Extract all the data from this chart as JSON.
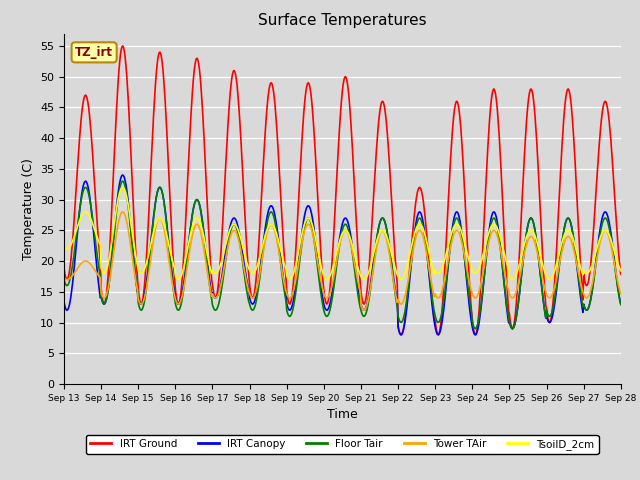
{
  "title": "Surface Temperatures",
  "xlabel": "Time",
  "ylabel": "Temperature (C)",
  "ylim": [
    0,
    57
  ],
  "yticks": [
    0,
    5,
    10,
    15,
    20,
    25,
    30,
    35,
    40,
    45,
    50,
    55
  ],
  "background_color": "#d9d9d9",
  "plot_bg_color": "#d9d9d9",
  "legend_entries": [
    "IRT Ground",
    "IRT Canopy",
    "Floor Tair",
    "Tower TAir",
    "TsoilD_2cm"
  ],
  "legend_colors": [
    "red",
    "blue",
    "green",
    "orange",
    "yellow"
  ],
  "tz_label": "TZ_irt",
  "n_days": 15,
  "start_day": 13,
  "pts_per_day": 48,
  "series": {
    "IRT_Ground": {
      "color": "red",
      "peaks": [
        47,
        55,
        54,
        53,
        51,
        49,
        49,
        50,
        46,
        32,
        46,
        48,
        48,
        48,
        46
      ],
      "troughs": [
        17,
        13,
        13,
        13,
        14,
        14,
        13,
        13,
        13,
        8,
        8,
        8,
        9,
        10,
        16
      ]
    },
    "IRT_Canopy": {
      "color": "blue",
      "peaks": [
        33,
        34,
        32,
        30,
        27,
        29,
        29,
        27,
        27,
        28,
        28,
        28,
        27,
        27,
        28
      ],
      "troughs": [
        12,
        13,
        13,
        13,
        14,
        13,
        12,
        12,
        12,
        8,
        8,
        8,
        9,
        10,
        12
      ]
    },
    "Floor_Tair": {
      "color": "green",
      "peaks": [
        32,
        33,
        32,
        30,
        26,
        28,
        27,
        26,
        27,
        27,
        27,
        27,
        27,
        27,
        27
      ],
      "troughs": [
        16,
        13,
        12,
        12,
        12,
        12,
        11,
        11,
        11,
        10,
        10,
        9,
        9,
        11,
        12
      ]
    },
    "Tower_TAir": {
      "color": "orange",
      "peaks": [
        20,
        28,
        27,
        26,
        25,
        26,
        26,
        25,
        25,
        25,
        25,
        25,
        24,
        24,
        25
      ],
      "troughs": [
        17,
        14,
        13,
        13,
        14,
        14,
        14,
        14,
        12,
        13,
        14,
        14,
        14,
        14,
        14
      ]
    },
    "TsoilD_2cm": {
      "color": "yellow",
      "peaks": [
        28,
        32,
        27,
        27,
        26,
        26,
        27,
        25,
        25,
        26,
        26,
        26,
        25,
        25,
        25
      ],
      "troughs": [
        22,
        18,
        18,
        17,
        18,
        18,
        17,
        17,
        17,
        17,
        18,
        18,
        17,
        17,
        18
      ]
    }
  }
}
